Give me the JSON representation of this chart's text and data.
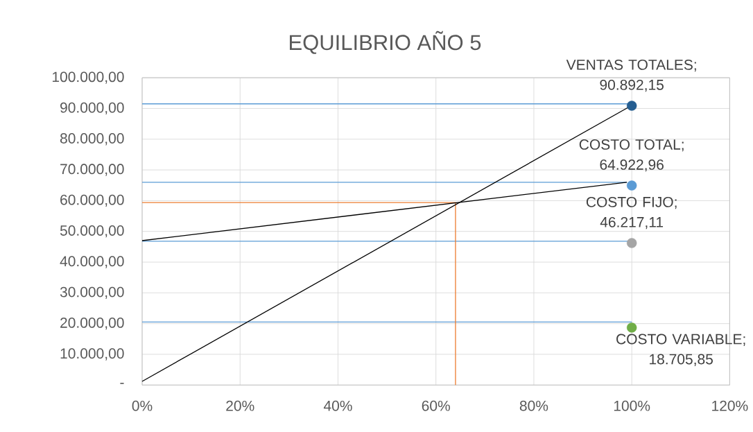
{
  "chart_data": {
    "type": "scatter",
    "title": "EQUILIBRIO  AÑO 5",
    "xlim": [
      0,
      1.2
    ],
    "xticks": [
      {
        "value": 0,
        "label": "0%"
      },
      {
        "value": 0.2,
        "label": "20%"
      },
      {
        "value": 0.4,
        "label": "40%"
      },
      {
        "value": 0.6,
        "label": "60%"
      },
      {
        "value": 0.8,
        "label": "80%"
      },
      {
        "value": 1,
        "label": "100%"
      },
      {
        "value": 1.2,
        "label": "120%"
      }
    ],
    "ylim": [
      0,
      100000
    ],
    "yticks": [
      {
        "value": 0,
        "label": "-"
      },
      {
        "value": 10000,
        "label": "10.000,00"
      },
      {
        "value": 20000,
        "label": "20.000,00"
      },
      {
        "value": 30000,
        "label": "30.000,00"
      },
      {
        "value": 40000,
        "label": "40.000,00"
      },
      {
        "value": 50000,
        "label": "50.000,00"
      },
      {
        "value": 60000,
        "label": "60.000,00"
      },
      {
        "value": 70000,
        "label": "70.000,00"
      },
      {
        "value": 80000,
        "label": "80.000,00"
      },
      {
        "value": 90000,
        "label": "90.000,00"
      },
      {
        "value": 100000,
        "label": "100.000,00"
      }
    ],
    "grid": true,
    "marker": "circle",
    "series": [
      {
        "color": "#255e91",
        "x": [
          1
        ],
        "values": [
          90892.15
        ],
        "value_labels": [
          "VENTAS TOTALES; 90.892,15"
        ]
      },
      {
        "color": "#5b9bd5",
        "x": [
          1
        ],
        "values": [
          64922.96
        ],
        "value_labels": [
          "COSTO TOTAL; 64.922,96"
        ]
      },
      {
        "color": "#a5a5a5",
        "x": [
          1
        ],
        "values": [
          46217.11
        ],
        "value_labels": [
          "COSTO FIJO; 46.217,11"
        ]
      },
      {
        "color": "#70ad47",
        "x": [
          1
        ],
        "values": [
          18705.85
        ],
        "value_labels": [
          "COSTO VARIABLE; 18.705,85"
        ]
      },
      {
        "type": "line",
        "marker": "none",
        "color": "#5b9bd5",
        "x": [
          0,
          1
        ],
        "values": [
          91500,
          91500
        ]
      },
      {
        "type": "line",
        "marker": "none",
        "color": "#5b9bd5",
        "x": [
          0,
          0.99
        ],
        "values": [
          66000,
          66000
        ]
      },
      {
        "type": "line",
        "marker": "none",
        "color": "#5b9bd5",
        "x": [
          0,
          1
        ],
        "values": [
          46800,
          46800
        ]
      },
      {
        "type": "line",
        "marker": "none",
        "color": "#5b9bd5",
        "x": [
          0,
          1
        ],
        "values": [
          20500,
          20500
        ]
      },
      {
        "type": "line",
        "marker": "none",
        "color": "#ed7d31",
        "x": [
          0,
          0.64,
          0.64
        ],
        "values": [
          59400,
          59400,
          0
        ]
      },
      {
        "type": "line",
        "marker": "none",
        "color": "#000000",
        "x": [
          0,
          1
        ],
        "values": [
          1200,
          91000
        ]
      },
      {
        "type": "line",
        "marker": "none",
        "color": "#000000",
        "x": [
          0,
          0.99
        ],
        "values": [
          47000,
          66000
        ]
      }
    ]
  }
}
